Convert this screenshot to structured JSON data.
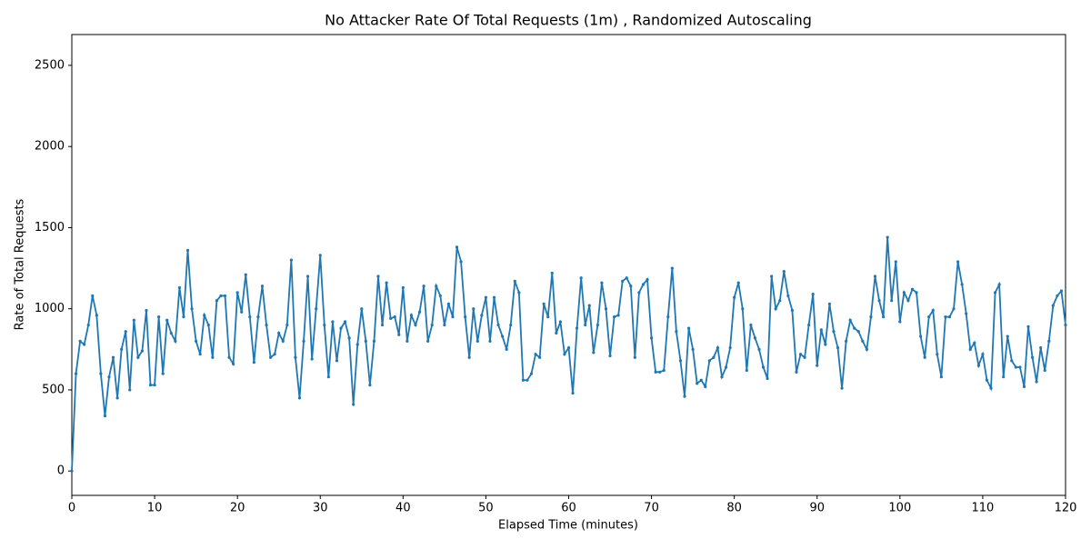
{
  "chart_data": {
    "type": "line",
    "title": "No Attacker Rate Of Total Requests (1m) , Randomized Autoscaling",
    "x_label": "Elapsed Time (minutes)",
    "y_label": "Rate of Total Requests",
    "x": [
      0,
      0.5,
      1,
      1.5,
      2,
      2.5,
      3,
      3.5,
      4,
      4.5,
      5,
      5.5,
      6,
      6.5,
      7,
      7.5,
      8,
      8.5,
      9,
      9.5,
      10,
      10.5,
      11,
      11.5,
      12,
      12.5,
      13,
      13.5,
      14,
      14.5,
      15,
      15.5,
      16,
      16.5,
      17,
      17.5,
      18,
      18.5,
      19,
      19.5,
      20,
      20.5,
      21,
      21.5,
      22,
      22.5,
      23,
      23.5,
      24,
      24.5,
      25,
      25.5,
      26,
      26.5,
      27,
      27.5,
      28,
      28.5,
      29,
      29.5,
      30,
      30.5,
      31,
      31.5,
      32,
      32.5,
      33,
      33.5,
      34,
      34.5,
      35,
      35.5,
      36,
      36.5,
      37,
      37.5,
      38,
      38.5,
      39,
      39.5,
      40,
      40.5,
      41,
      41.5,
      42,
      42.5,
      43,
      43.5,
      44,
      44.5,
      45,
      45.5,
      46,
      46.5,
      47,
      47.5,
      48,
      48.5,
      49,
      49.5,
      50,
      50.5,
      51,
      51.5,
      52,
      52.5,
      53,
      53.5,
      54,
      54.5,
      55,
      55.5,
      56,
      56.5,
      57,
      57.5,
      58,
      58.5,
      59,
      59.5,
      60,
      60.5,
      61,
      61.5,
      62,
      62.5,
      63,
      63.5,
      64,
      64.5,
      65,
      65.5,
      66,
      66.5,
      67,
      67.5,
      68,
      68.5,
      69,
      69.5,
      70,
      70.5,
      71,
      71.5,
      72,
      72.5,
      73,
      73.5,
      74,
      74.5,
      75,
      75.5,
      76,
      76.5,
      77,
      77.5,
      78,
      78.5,
      79,
      79.5,
      80,
      80.5,
      81,
      81.5,
      82,
      82.5,
      83,
      83.5,
      84,
      84.5,
      85,
      85.5,
      86,
      86.5,
      87,
      87.5,
      88,
      88.5,
      89,
      89.5,
      90,
      90.5,
      91,
      91.5,
      92,
      92.5,
      93,
      93.5,
      94,
      94.5,
      95,
      95.5,
      96,
      96.5,
      97,
      97.5,
      98,
      98.5,
      99,
      99.5,
      100,
      100.5,
      101,
      101.5,
      102,
      102.5,
      103,
      103.5,
      104,
      104.5,
      105,
      105.5,
      106,
      106.5,
      107,
      107.5,
      108,
      108.5,
      109,
      109.5,
      110,
      110.5,
      111,
      111.5,
      112,
      112.5,
      113,
      113.5,
      114,
      114.5,
      115,
      115.5,
      116,
      116.5,
      117,
      117.5,
      118,
      118.5,
      119,
      119.5,
      120
    ],
    "series": [
      {
        "name": "Rate of Total Requests",
        "color": "#1f77b4",
        "values": [
          0,
          600,
          800,
          780,
          900,
          1080,
          960,
          600,
          340,
          580,
          700,
          450,
          750,
          860,
          500,
          930,
          700,
          740,
          990,
          530,
          530,
          950,
          600,
          930,
          850,
          800,
          1130,
          950,
          1360,
          1000,
          800,
          720,
          960,
          900,
          700,
          1050,
          1080,
          1080,
          700,
          660,
          1100,
          980,
          1210,
          950,
          670,
          950,
          1140,
          900,
          700,
          720,
          850,
          800,
          900,
          1300,
          700,
          450,
          800,
          1200,
          690,
          1000,
          1330,
          900,
          580,
          920,
          680,
          880,
          920,
          820,
          410,
          780,
          1000,
          800,
          530,
          800,
          1200,
          900,
          1160,
          940,
          950,
          840,
          1130,
          800,
          960,
          900,
          980,
          1140,
          800,
          900,
          1140,
          1080,
          900,
          1030,
          950,
          1380,
          1290,
          950,
          700,
          1000,
          800,
          960,
          1070,
          800,
          1070,
          900,
          830,
          750,
          900,
          1170,
          1100,
          560,
          560,
          600,
          720,
          700,
          1030,
          950,
          1220,
          850,
          920,
          720,
          760,
          480,
          880,
          1190,
          900,
          1020,
          730,
          900,
          1160,
          1000,
          710,
          950,
          960,
          1170,
          1190,
          1140,
          700,
          1100,
          1150,
          1180,
          820,
          610,
          610,
          620,
          950,
          1250,
          860,
          680,
          460,
          880,
          750,
          540,
          560,
          520,
          680,
          700,
          760,
          580,
          640,
          760,
          1070,
          1160,
          1000,
          620,
          900,
          820,
          750,
          640,
          570,
          1200,
          1000,
          1050,
          1230,
          1080,
          990,
          610,
          720,
          700,
          900,
          1090,
          650,
          870,
          780,
          1030,
          860,
          760,
          510,
          800,
          930,
          880,
          860,
          800,
          750,
          950,
          1200,
          1050,
          950,
          1440,
          1050,
          1290,
          920,
          1100,
          1050,
          1120,
          1100,
          830,
          700,
          950,
          990,
          720,
          580,
          950,
          950,
          1000,
          1290,
          1150,
          970,
          750,
          790,
          650,
          720,
          560,
          510,
          1100,
          1150,
          580,
          830,
          680,
          640,
          640,
          520,
          890,
          700,
          550,
          760,
          620,
          800,
          1020,
          1080,
          1110,
          900
        ]
      }
    ],
    "xlim": [
      0,
      120
    ],
    "xticks": [
      0,
      10,
      20,
      30,
      40,
      50,
      60,
      70,
      80,
      90,
      100,
      110,
      120
    ],
    "ylim": [
      -150,
      2690
    ],
    "yticks": [
      0,
      500,
      1000,
      1500,
      2000,
      2500
    ],
    "grid": false
  }
}
